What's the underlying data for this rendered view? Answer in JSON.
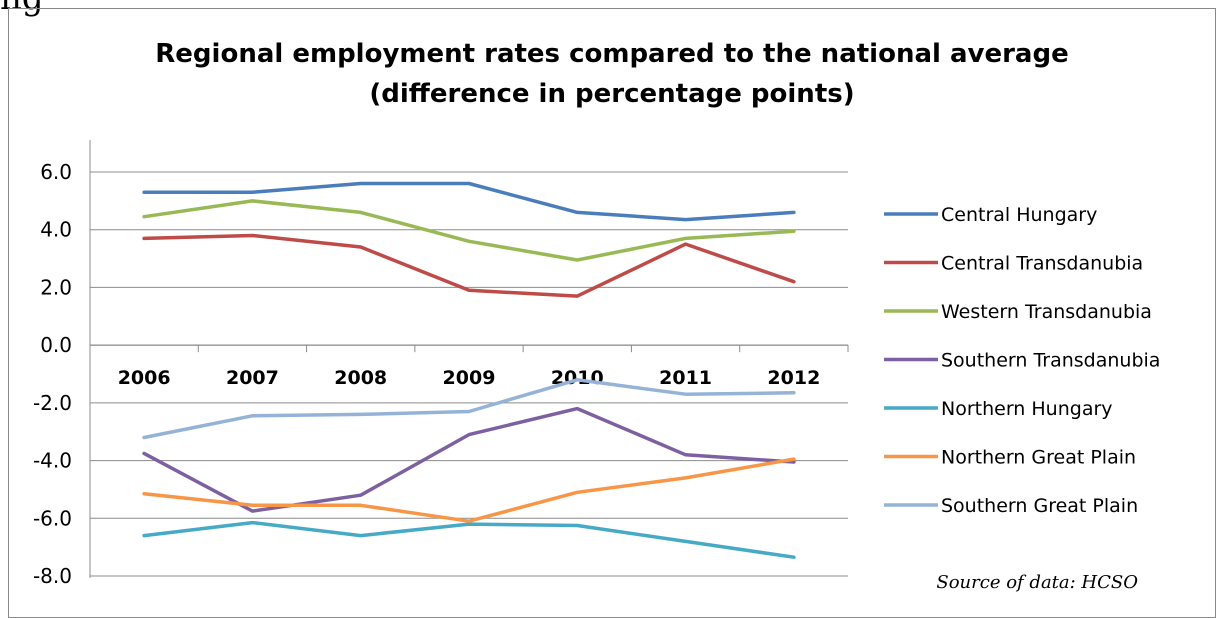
{
  "page": {
    "heading_fragment": "ng"
  },
  "chart_data": {
    "type": "line",
    "title": "Regional employment rates compared to the national average",
    "subtitle": "(difference in percentage points)",
    "xlabel": "",
    "ylabel": "",
    "categories": [
      "2006",
      "2007",
      "2008",
      "2009",
      "2010",
      "2011",
      "2012"
    ],
    "ylim": [
      -8,
      7
    ],
    "yticks": [
      6,
      4,
      2,
      0,
      -2,
      -4,
      -6,
      -8
    ],
    "ytick_labels": [
      "6.0",
      "4.0",
      "2.0",
      "0.0",
      "-2.0",
      "-4.0",
      "-6.0",
      "-8.0"
    ],
    "grid": true,
    "legend_position": "right",
    "series": [
      {
        "name": "Central Hungary",
        "color": "#4a7ebb",
        "values": [
          5.3,
          5.3,
          5.6,
          5.6,
          4.6,
          4.35,
          4.6
        ]
      },
      {
        "name": "Central Transdanubia",
        "color": "#be4b48",
        "values": [
          3.7,
          3.8,
          3.4,
          1.9,
          1.7,
          3.5,
          2.2
        ]
      },
      {
        "name": "Western Transdanubia",
        "color": "#98b954",
        "values": [
          4.45,
          5.0,
          4.6,
          3.6,
          2.95,
          3.7,
          3.95
        ]
      },
      {
        "name": "Southern Transdanubia",
        "color": "#7d60a0",
        "values": [
          -3.75,
          -5.75,
          -5.2,
          -3.1,
          -2.2,
          -3.8,
          -4.05
        ]
      },
      {
        "name": "Northern Hungary",
        "color": "#46aac5",
        "values": [
          -6.6,
          -6.15,
          -6.6,
          -6.2,
          -6.25,
          -6.8,
          -7.35
        ]
      },
      {
        "name": "Northern Great Plain",
        "color": "#f79646",
        "values": [
          -5.15,
          -5.55,
          -5.55,
          -6.1,
          -5.1,
          -4.6,
          -3.95
        ]
      },
      {
        "name": "Southern Great Plain",
        "color": "#95b3d7",
        "values": [
          -3.2,
          -2.45,
          -2.4,
          -2.3,
          -1.2,
          -1.7,
          -1.65
        ]
      }
    ],
    "source_note": "Source of data: HCSO"
  }
}
